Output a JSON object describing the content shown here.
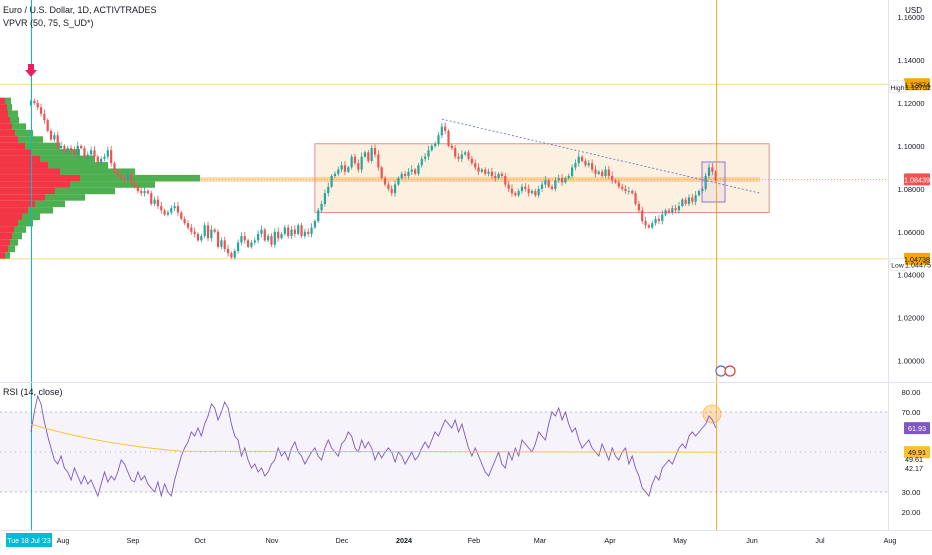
{
  "chart_data": {
    "type": "candlestick",
    "title": "Euro / U.S. Dollar, 1D, ACTIVTRADES",
    "indicator_label": "VPVR (50, 75, S_UD*)",
    "currency": "USD",
    "x_ticks": [
      "Aug",
      "Sep",
      "Oct",
      "Nov",
      "Dec",
      "2024",
      "Feb",
      "Mar",
      "Apr",
      "May",
      "Jun",
      "Jul",
      "Aug"
    ],
    "y_ticks": [
      "1.16000",
      "1.14000",
      "1.12000",
      "1.10000",
      "1.08000",
      "1.06000",
      "1.04000",
      "1.02000",
      "1.00000"
    ],
    "ylim": [
      0.99,
      1.168
    ],
    "price_close_series": [
      1.121,
      1.12,
      1.118,
      1.115,
      1.112,
      1.107,
      1.103,
      1.105,
      1.099,
      1.1,
      1.097,
      1.099,
      1.098,
      1.096,
      1.1,
      1.099,
      1.095,
      1.096,
      1.098,
      1.095,
      1.092,
      1.094,
      1.095,
      1.098,
      1.092,
      1.088,
      1.086,
      1.085,
      1.084,
      1.087,
      1.083,
      1.081,
      1.079,
      1.078,
      1.079,
      1.078,
      1.073,
      1.075,
      1.072,
      1.07,
      1.068,
      1.069,
      1.071,
      1.072,
      1.069,
      1.066,
      1.064,
      1.062,
      1.06,
      1.059,
      1.056,
      1.058,
      1.063,
      1.057,
      1.061,
      1.06,
      1.053,
      1.056,
      1.052,
      1.05,
      1.048,
      1.051,
      1.055,
      1.058,
      1.056,
      1.053,
      1.055,
      1.056,
      1.059,
      1.061,
      1.056,
      1.058,
      1.054,
      1.06,
      1.057,
      1.059,
      1.062,
      1.058,
      1.061,
      1.059,
      1.063,
      1.058,
      1.06,
      1.059,
      1.062,
      1.065,
      1.07,
      1.073,
      1.078,
      1.081,
      1.086,
      1.087,
      1.089,
      1.091,
      1.088,
      1.09,
      1.095,
      1.092,
      1.089,
      1.095,
      1.097,
      1.093,
      1.099,
      1.096,
      1.09,
      1.085,
      1.082,
      1.08,
      1.078,
      1.082,
      1.085,
      1.087,
      1.086,
      1.088,
      1.089,
      1.087,
      1.091,
      1.094,
      1.095,
      1.098,
      1.1,
      1.101,
      1.105,
      1.109,
      1.107,
      1.1,
      1.099,
      1.095,
      1.094,
      1.096,
      1.097,
      1.094,
      1.092,
      1.09,
      1.088,
      1.089,
      1.087,
      1.088,
      1.086,
      1.085,
      1.087,
      1.086,
      1.082,
      1.08,
      1.078,
      1.077,
      1.079,
      1.081,
      1.08,
      1.078,
      1.079,
      1.077,
      1.08,
      1.082,
      1.084,
      1.081,
      1.08,
      1.084,
      1.085,
      1.083,
      1.085,
      1.086,
      1.09,
      1.092,
      1.095,
      1.093,
      1.091,
      1.092,
      1.089,
      1.087,
      1.088,
      1.086,
      1.089,
      1.086,
      1.084,
      1.083,
      1.081,
      1.08,
      1.079,
      1.079,
      1.078,
      1.073,
      1.07,
      1.065,
      1.063,
      1.062,
      1.064,
      1.066,
      1.065,
      1.068,
      1.07,
      1.069,
      1.071,
      1.07,
      1.072,
      1.075,
      1.073,
      1.076,
      1.074,
      1.077,
      1.079,
      1.08,
      1.086,
      1.09,
      1.088,
      1.084
    ],
    "rsi_series": [
      60,
      70,
      78,
      74,
      65,
      58,
      52,
      46,
      44,
      48,
      42,
      40,
      36,
      42,
      38,
      34,
      38,
      34,
      36,
      32,
      28,
      34,
      40,
      35,
      38,
      36,
      40,
      46,
      44,
      40,
      36,
      35,
      40,
      36,
      38,
      34,
      32,
      30,
      35,
      28,
      34,
      30,
      28,
      36,
      42,
      48,
      52,
      55,
      60,
      58,
      62,
      58,
      64,
      68,
      74,
      72,
      66,
      70,
      75,
      72,
      64,
      58,
      56,
      48,
      52,
      46,
      42,
      44,
      40,
      42,
      38,
      40,
      44,
      46,
      52,
      48,
      50,
      46,
      52,
      55,
      50,
      48,
      44,
      47,
      50,
      52,
      48,
      46,
      52,
      56,
      52,
      50,
      48,
      54,
      56,
      60,
      58,
      52,
      50,
      56,
      52,
      55,
      52,
      46,
      50,
      47,
      50,
      52,
      50,
      45,
      50,
      48,
      44,
      47,
      50,
      46,
      48,
      52,
      55,
      52,
      56,
      60,
      58,
      62,
      66,
      64,
      62,
      66,
      60,
      64,
      58,
      52,
      48,
      52,
      48,
      44,
      40,
      38,
      42,
      46,
      50,
      44,
      42,
      50,
      46,
      52,
      48,
      56,
      54,
      52,
      50,
      54,
      60,
      58,
      56,
      64,
      70,
      68,
      72,
      66,
      70,
      64,
      60,
      62,
      56,
      52,
      54,
      56,
      52,
      50,
      48,
      54,
      50,
      46,
      52,
      48,
      46,
      50,
      52,
      44,
      48,
      42,
      38,
      32,
      30,
      28,
      34,
      38,
      36,
      42,
      44,
      46,
      44,
      48,
      52,
      54,
      52,
      58,
      60,
      58,
      60,
      62,
      64,
      68,
      66,
      62
    ],
    "rsi_label": "RSI (14, close)",
    "rsi_ticks": [
      "80.00",
      "70.00",
      "30.00",
      "20.00"
    ],
    "rsi_ylim": [
      16,
      84
    ],
    "rsi_bands": [
      70,
      30
    ],
    "rsi_ma_level": 49.91,
    "rsi_badges": {
      "rsi": "61.93",
      "ma": "49.91",
      "extra1": "49.61",
      "extra2": "42.17"
    },
    "price_badges": {
      "current": "1.08439",
      "high": "1.12874",
      "low": "1.04738"
    },
    "high_label": "High",
    "high_value": "1.12752",
    "low_label": "Low",
    "low_value": "1.04475",
    "levels": {
      "high": 1.12874,
      "low": 1.04738,
      "current": 1.08439
    },
    "range_box": {
      "top": 1.101,
      "bottom": 1.069,
      "start_index": 85,
      "end_index": 221
    },
    "trendline": {
      "start_index": 123,
      "start_value": 1.1125,
      "end_value": 1.078
    },
    "volume_profile": [
      [
        1.121,
        5,
        6
      ],
      [
        1.118,
        7,
        5
      ],
      [
        1.115,
        8,
        10
      ],
      [
        1.112,
        10,
        9
      ],
      [
        1.109,
        12,
        14
      ],
      [
        1.106,
        15,
        18
      ],
      [
        1.103,
        18,
        25
      ],
      [
        1.1,
        25,
        35
      ],
      [
        1.097,
        32,
        48
      ],
      [
        1.094,
        40,
        55
      ],
      [
        1.091,
        48,
        60
      ],
      [
        1.088,
        60,
        75
      ],
      [
        1.085,
        80,
        120
      ],
      [
        1.082,
        70,
        85
      ],
      [
        1.079,
        55,
        60
      ],
      [
        1.076,
        45,
        40
      ],
      [
        1.073,
        35,
        30
      ],
      [
        1.07,
        28,
        25
      ],
      [
        1.067,
        22,
        18
      ],
      [
        1.064,
        18,
        15
      ],
      [
        1.061,
        14,
        12
      ],
      [
        1.058,
        12,
        10
      ],
      [
        1.055,
        10,
        8
      ],
      [
        1.052,
        8,
        7
      ],
      [
        1.049,
        5,
        5
      ]
    ],
    "crosshair_date": "Tue 18 Jul '23",
    "colors": {
      "up": "#26a69a",
      "down": "#ef5350",
      "profile_down": "#f23645",
      "profile_up": "#4caf50",
      "box": "#f5c289",
      "rsi": "#7e57c2",
      "rsi_ma": "#fbc02d",
      "level": "#f7a600",
      "crosshair": "#00bcd4"
    }
  }
}
